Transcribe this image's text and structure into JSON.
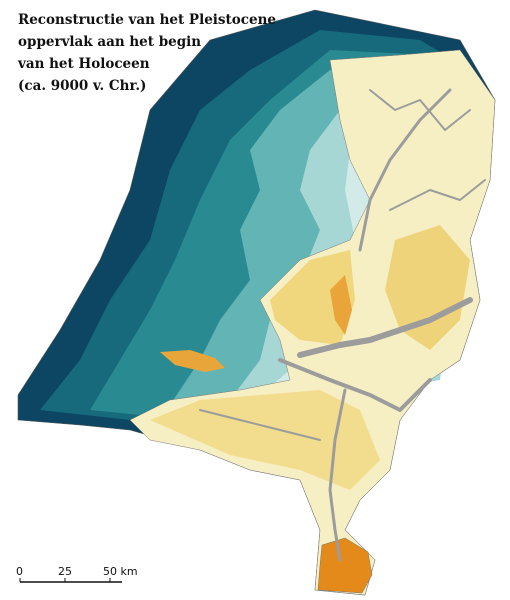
{
  "title": {
    "lines": [
      "Reconstructie van het Pleistocene",
      "oppervlak aan het begin",
      "van het Holoceen",
      "(ca. 9000 v. Chr.)"
    ]
  },
  "scale_bar": {
    "labels": [
      "0",
      "25",
      "50 km"
    ]
  }
}
